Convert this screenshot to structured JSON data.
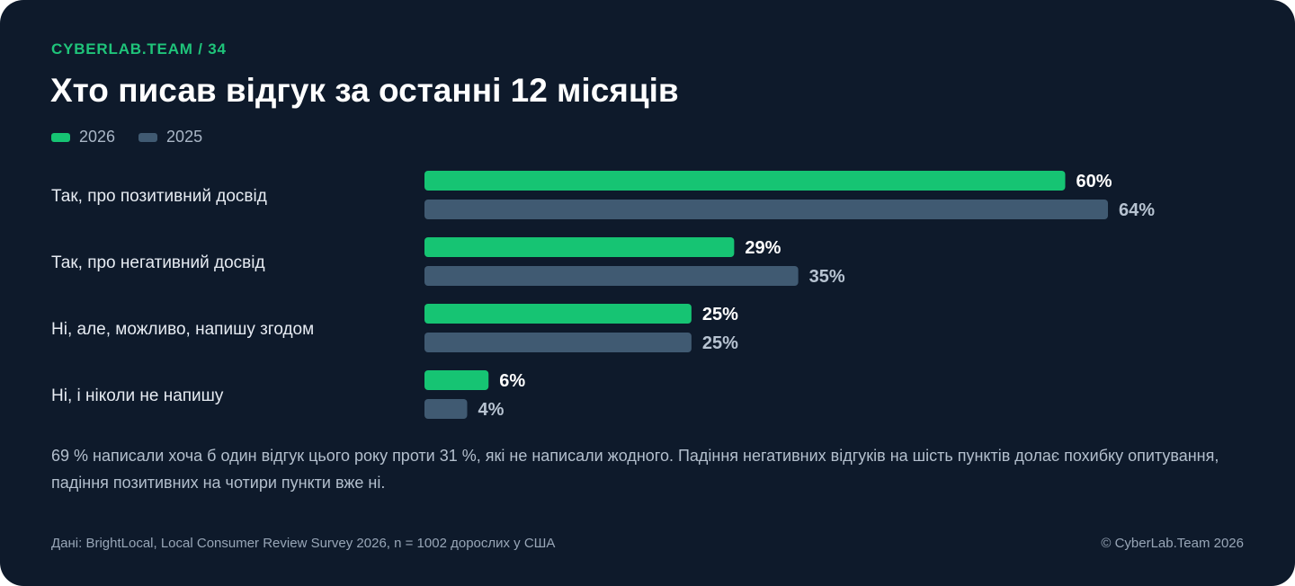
{
  "header": {
    "kicker": "CYBERLAB.TEAM / 34",
    "title": "Хто писав відгук за останні 12 місяців"
  },
  "colors": {
    "series_2026": "#16c473",
    "series_2025": "#405a72",
    "label_2026": "#ffffff",
    "label_2025": "#b7c3d1"
  },
  "chart_data": {
    "type": "bar",
    "orientation": "horizontal",
    "categories": [
      "Так, про позитивний досвід",
      "Так, про негативний досвід",
      "Ні, але, можливо, напишу згодом",
      "Ні, і ніколи не напишу"
    ],
    "series": [
      {
        "name": "2026",
        "values": [
          60,
          29,
          25,
          6
        ]
      },
      {
        "name": "2025",
        "values": [
          64,
          35,
          25,
          4
        ]
      }
    ],
    "value_suffix": "%",
    "xlim": [
      0,
      64
    ],
    "grid": false,
    "legend": "top-left"
  },
  "note": "69 % написали хоча б один відгук цього року проти 31 %, які не написали жодного. Падіння негативних відгуків на шість пунктів долає похибку опитування, падіння позитивних на чотири пункти вже ні.",
  "footer": {
    "source": "Дані: BrightLocal, Local Consumer Review Survey 2026, n = 1002 дорослих у США",
    "copyright": "© CyberLab.Team 2026"
  }
}
